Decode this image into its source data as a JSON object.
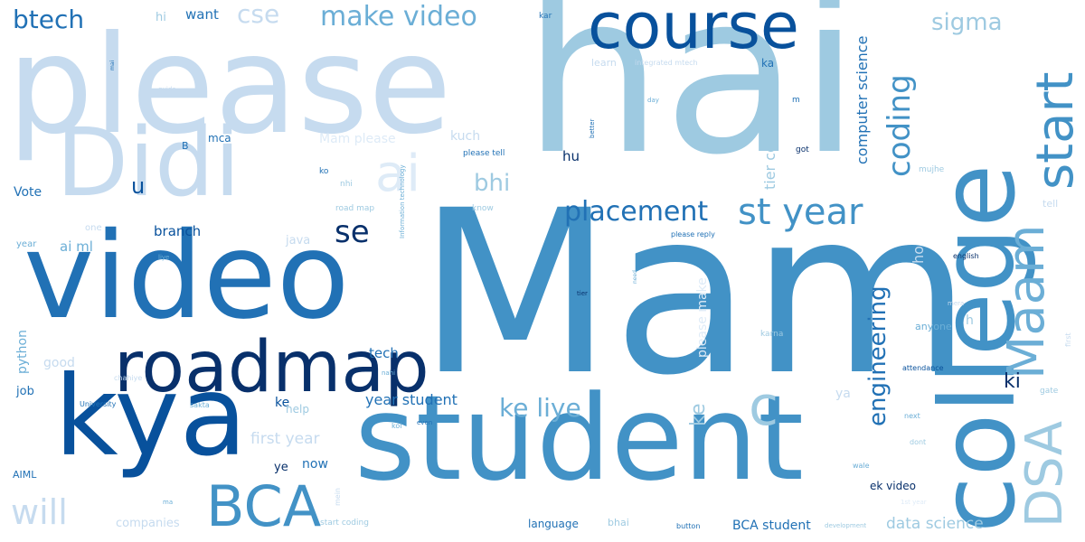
{
  "palette": {
    "darkest": "#08306b",
    "dark": "#08519c",
    "medium_dark": "#2171b5",
    "medium": "#4292c6",
    "medium_light": "#6baed6",
    "light": "#9ecae1",
    "lighter": "#c6dbef",
    "lightest": "#deebf7",
    "background": "#ffffff"
  },
  "words": [
    {
      "text": "Mam",
      "color": "#4292c6",
      "orientation": "horizontal"
    },
    {
      "text": "hai",
      "color": "#9ecae1",
      "orientation": "horizontal"
    },
    {
      "text": "please",
      "color": "#c6dbef",
      "orientation": "horizontal"
    },
    {
      "text": "video",
      "color": "#2171b5",
      "orientation": "horizontal"
    },
    {
      "text": "kya",
      "color": "#08519c",
      "orientation": "horizontal"
    },
    {
      "text": "student",
      "color": "#4292c6",
      "orientation": "horizontal"
    },
    {
      "text": "college",
      "color": "#4292c6",
      "orientation": "vertical"
    },
    {
      "text": "Didi",
      "color": "#c6dbef",
      "orientation": "horizontal"
    },
    {
      "text": "roadmap",
      "color": "#08306b",
      "orientation": "horizontal"
    },
    {
      "text": "course",
      "color": "#08519c",
      "orientation": "horizontal"
    },
    {
      "text": "Maam",
      "color": "#6baed6",
      "orientation": "vertical"
    },
    {
      "text": "start",
      "color": "#4292c6",
      "orientation": "vertical"
    },
    {
      "text": "DSA",
      "color": "#9ecae1",
      "orientation": "vertical"
    },
    {
      "text": "BCA",
      "color": "#4292c6",
      "orientation": "horizontal"
    },
    {
      "text": "c",
      "color": "#9ecae1",
      "orientation": "horizontal"
    },
    {
      "text": "ai",
      "color": "#deebf7",
      "orientation": "horizontal"
    },
    {
      "text": "st year",
      "color": "#4292c6",
      "orientation": "horizontal"
    },
    {
      "text": "placement",
      "color": "#2171b5",
      "orientation": "horizontal"
    },
    {
      "text": "coding",
      "color": "#4292c6",
      "orientation": "vertical"
    },
    {
      "text": "engineering",
      "color": "#2171b5",
      "orientation": "vertical"
    },
    {
      "text": "make video",
      "color": "#6baed6",
      "orientation": "horizontal"
    },
    {
      "text": "se",
      "color": "#08306b",
      "orientation": "horizontal"
    },
    {
      "text": "will",
      "color": "#c6dbef",
      "orientation": "horizontal"
    },
    {
      "text": "ke liye",
      "color": "#6baed6",
      "orientation": "horizontal"
    },
    {
      "text": "ke",
      "color": "#9ecae1",
      "orientation": "vertical"
    },
    {
      "text": "cse",
      "color": "#c6dbef",
      "orientation": "horizontal"
    },
    {
      "text": "btech",
      "color": "#2171b5",
      "orientation": "horizontal"
    },
    {
      "text": "sigma",
      "color": "#9ecae1",
      "orientation": "horizontal"
    },
    {
      "text": "bhi",
      "color": "#9ecae1",
      "orientation": "horizontal"
    },
    {
      "text": "u",
      "color": "#08519c",
      "orientation": "horizontal"
    },
    {
      "text": "ki",
      "color": "#08306b",
      "orientation": "horizontal"
    },
    {
      "text": "computer science",
      "color": "#2171b5",
      "orientation": "vertical"
    },
    {
      "text": "tier college",
      "color": "#9ecae1",
      "orientation": "vertical"
    },
    {
      "text": "year student",
      "color": "#2171b5",
      "orientation": "horizontal"
    },
    {
      "text": "first year",
      "color": "#c6dbef",
      "orientation": "horizontal"
    },
    {
      "text": "data science",
      "color": "#9ecae1",
      "orientation": "horizontal"
    },
    {
      "text": "please make",
      "color": "#deebf7",
      "orientation": "vertical"
    },
    {
      "text": "BCA student",
      "color": "#2171b5",
      "orientation": "horizontal"
    },
    {
      "text": "ho",
      "color": "#c6dbef",
      "orientation": "vertical"
    },
    {
      "text": "branch",
      "color": "#08519c",
      "orientation": "horizontal"
    },
    {
      "text": "ai ml",
      "color": "#6baed6",
      "orientation": "horizontal"
    },
    {
      "text": "want",
      "color": "#2171b5",
      "orientation": "horizontal"
    },
    {
      "text": "tech",
      "color": "#2171b5",
      "orientation": "horizontal"
    },
    {
      "text": "Vote",
      "color": "#2171b5",
      "orientation": "horizontal"
    },
    {
      "text": "Mam please",
      "color": "#deebf7",
      "orientation": "horizontal"
    },
    {
      "text": "python",
      "color": "#6baed6",
      "orientation": "vertical"
    },
    {
      "text": "good",
      "color": "#c6dbef",
      "orientation": "horizontal"
    },
    {
      "text": "kuch",
      "color": "#c6dbef",
      "orientation": "horizontal"
    },
    {
      "text": "hu",
      "color": "#08306b",
      "orientation": "horizontal"
    },
    {
      "text": "ke",
      "color": "#08519c",
      "orientation": "horizontal"
    },
    {
      "text": "mca",
      "color": "#2171b5",
      "orientation": "horizontal"
    },
    {
      "text": "hi",
      "color": "#9ecae1",
      "orientation": "horizontal"
    },
    {
      "text": "now",
      "color": "#2171b5",
      "orientation": "horizontal"
    },
    {
      "text": "ye",
      "color": "#08306b",
      "orientation": "horizontal"
    },
    {
      "text": "job",
      "color": "#2171b5",
      "orientation": "horizontal"
    },
    {
      "text": "java",
      "color": "#c6dbef",
      "orientation": "horizontal"
    },
    {
      "text": "ya",
      "color": "#c6dbef",
      "orientation": "horizontal"
    },
    {
      "text": "h",
      "color": "#9ecae1",
      "orientation": "horizontal"
    },
    {
      "text": "anyone",
      "color": "#6baed6",
      "orientation": "horizontal"
    },
    {
      "text": "help",
      "color": "#9ecae1",
      "orientation": "horizontal"
    },
    {
      "text": "AIML",
      "color": "#2171b5",
      "orientation": "horizontal"
    },
    {
      "text": "language",
      "color": "#2171b5",
      "orientation": "horizontal"
    },
    {
      "text": "companies",
      "color": "#c6dbef",
      "orientation": "horizontal"
    },
    {
      "text": "bhai",
      "color": "#9ecae1",
      "orientation": "horizontal"
    },
    {
      "text": "ek video",
      "color": "#08306b",
      "orientation": "horizontal"
    },
    {
      "text": "year",
      "color": "#6baed6",
      "orientation": "horizontal"
    },
    {
      "text": "one",
      "color": "#c6dbef",
      "orientation": "horizontal"
    },
    {
      "text": "kar",
      "color": "#2171b5",
      "orientation": "horizontal"
    },
    {
      "text": "ka",
      "color": "#2171b5",
      "orientation": "horizontal"
    },
    {
      "text": "m",
      "color": "#2171b5",
      "orientation": "horizontal"
    },
    {
      "text": "B",
      "color": "#2171b5",
      "orientation": "horizontal"
    },
    {
      "text": "ko",
      "color": "#2171b5",
      "orientation": "horizontal"
    },
    {
      "text": "nhi",
      "color": "#9ecae1",
      "orientation": "horizontal"
    },
    {
      "text": "got",
      "color": "#08306b",
      "orientation": "horizontal"
    },
    {
      "text": "mujhe",
      "color": "#9ecae1",
      "orientation": "horizontal"
    },
    {
      "text": "tell",
      "color": "#c6dbef",
      "orientation": "horizontal"
    },
    {
      "text": "gate",
      "color": "#9ecae1",
      "orientation": "horizontal"
    },
    {
      "text": "next",
      "color": "#6baed6",
      "orientation": "horizontal"
    },
    {
      "text": "dont",
      "color": "#9ecae1",
      "orientation": "horizontal"
    },
    {
      "text": "wale",
      "color": "#6baed6",
      "orientation": "horizontal"
    },
    {
      "text": "please tell",
      "color": "#2171b5",
      "orientation": "horizontal"
    },
    {
      "text": "please reply",
      "color": "#2171b5",
      "orientation": "horizontal"
    },
    {
      "text": "road map",
      "color": "#9ecae1",
      "orientation": "horizontal"
    },
    {
      "text": "know",
      "color": "#9ecae1",
      "orientation": "horizontal"
    },
    {
      "text": "integrated mtech",
      "color": "#c6dbef",
      "orientation": "horizontal"
    },
    {
      "text": "learn",
      "color": "#c6dbef",
      "orientation": "horizontal"
    },
    {
      "text": "start coding",
      "color": "#9ecae1",
      "orientation": "horizontal"
    },
    {
      "text": "development",
      "color": "#9ecae1",
      "orientation": "horizontal"
    },
    {
      "text": "University",
      "color": "#2171b5",
      "orientation": "horizontal"
    },
    {
      "text": "sakta",
      "color": "#6baed6",
      "orientation": "horizontal"
    },
    {
      "text": "koi",
      "color": "#6baed6",
      "orientation": "horizontal"
    },
    {
      "text": "even",
      "color": "#2171b5",
      "orientation": "horizontal"
    },
    {
      "text": "nahi",
      "color": "#6baed6",
      "orientation": "horizontal"
    },
    {
      "text": "attendance",
      "color": "#08519c",
      "orientation": "horizontal"
    },
    {
      "text": "english",
      "color": "#08306b",
      "orientation": "horizontal"
    },
    {
      "text": "mera",
      "color": "#c6dbef",
      "orientation": "horizontal"
    },
    {
      "text": "karna",
      "color": "#9ecae1",
      "orientation": "horizontal"
    },
    {
      "text": "first",
      "color": "#c6dbef",
      "orientation": "vertical"
    },
    {
      "text": "Information technology",
      "color": "#6baed6",
      "orientation": "vertical"
    },
    {
      "text": "better",
      "color": "#2171b5",
      "orientation": "vertical"
    },
    {
      "text": "mein",
      "color": "#c6dbef",
      "orientation": "vertical"
    },
    {
      "text": "mai",
      "color": "#2171b5",
      "orientation": "vertical"
    },
    {
      "text": "need",
      "color": "#6baed6",
      "orientation": "vertical"
    },
    {
      "text": "tier",
      "color": "#08306b",
      "orientation": "horizontal"
    },
    {
      "text": "guide",
      "color": "#c6dbef",
      "orientation": "horizontal"
    },
    {
      "text": "liye",
      "color": "#6baed6",
      "orientation": "horizontal"
    },
    {
      "text": "day",
      "color": "#6baed6",
      "orientation": "horizontal"
    },
    {
      "text": "ma",
      "color": "#6baed6",
      "orientation": "horizontal"
    },
    {
      "text": "button",
      "color": "#2171b5",
      "orientation": "horizontal"
    },
    {
      "text": "1st year",
      "color": "#deebf7",
      "orientation": "horizontal"
    },
    {
      "text": "chahiye",
      "color": "#c6dbef",
      "orientation": "horizontal"
    },
    {
      "text": "na",
      "color": "#9ecae1",
      "orientation": "horizontal"
    }
  ]
}
